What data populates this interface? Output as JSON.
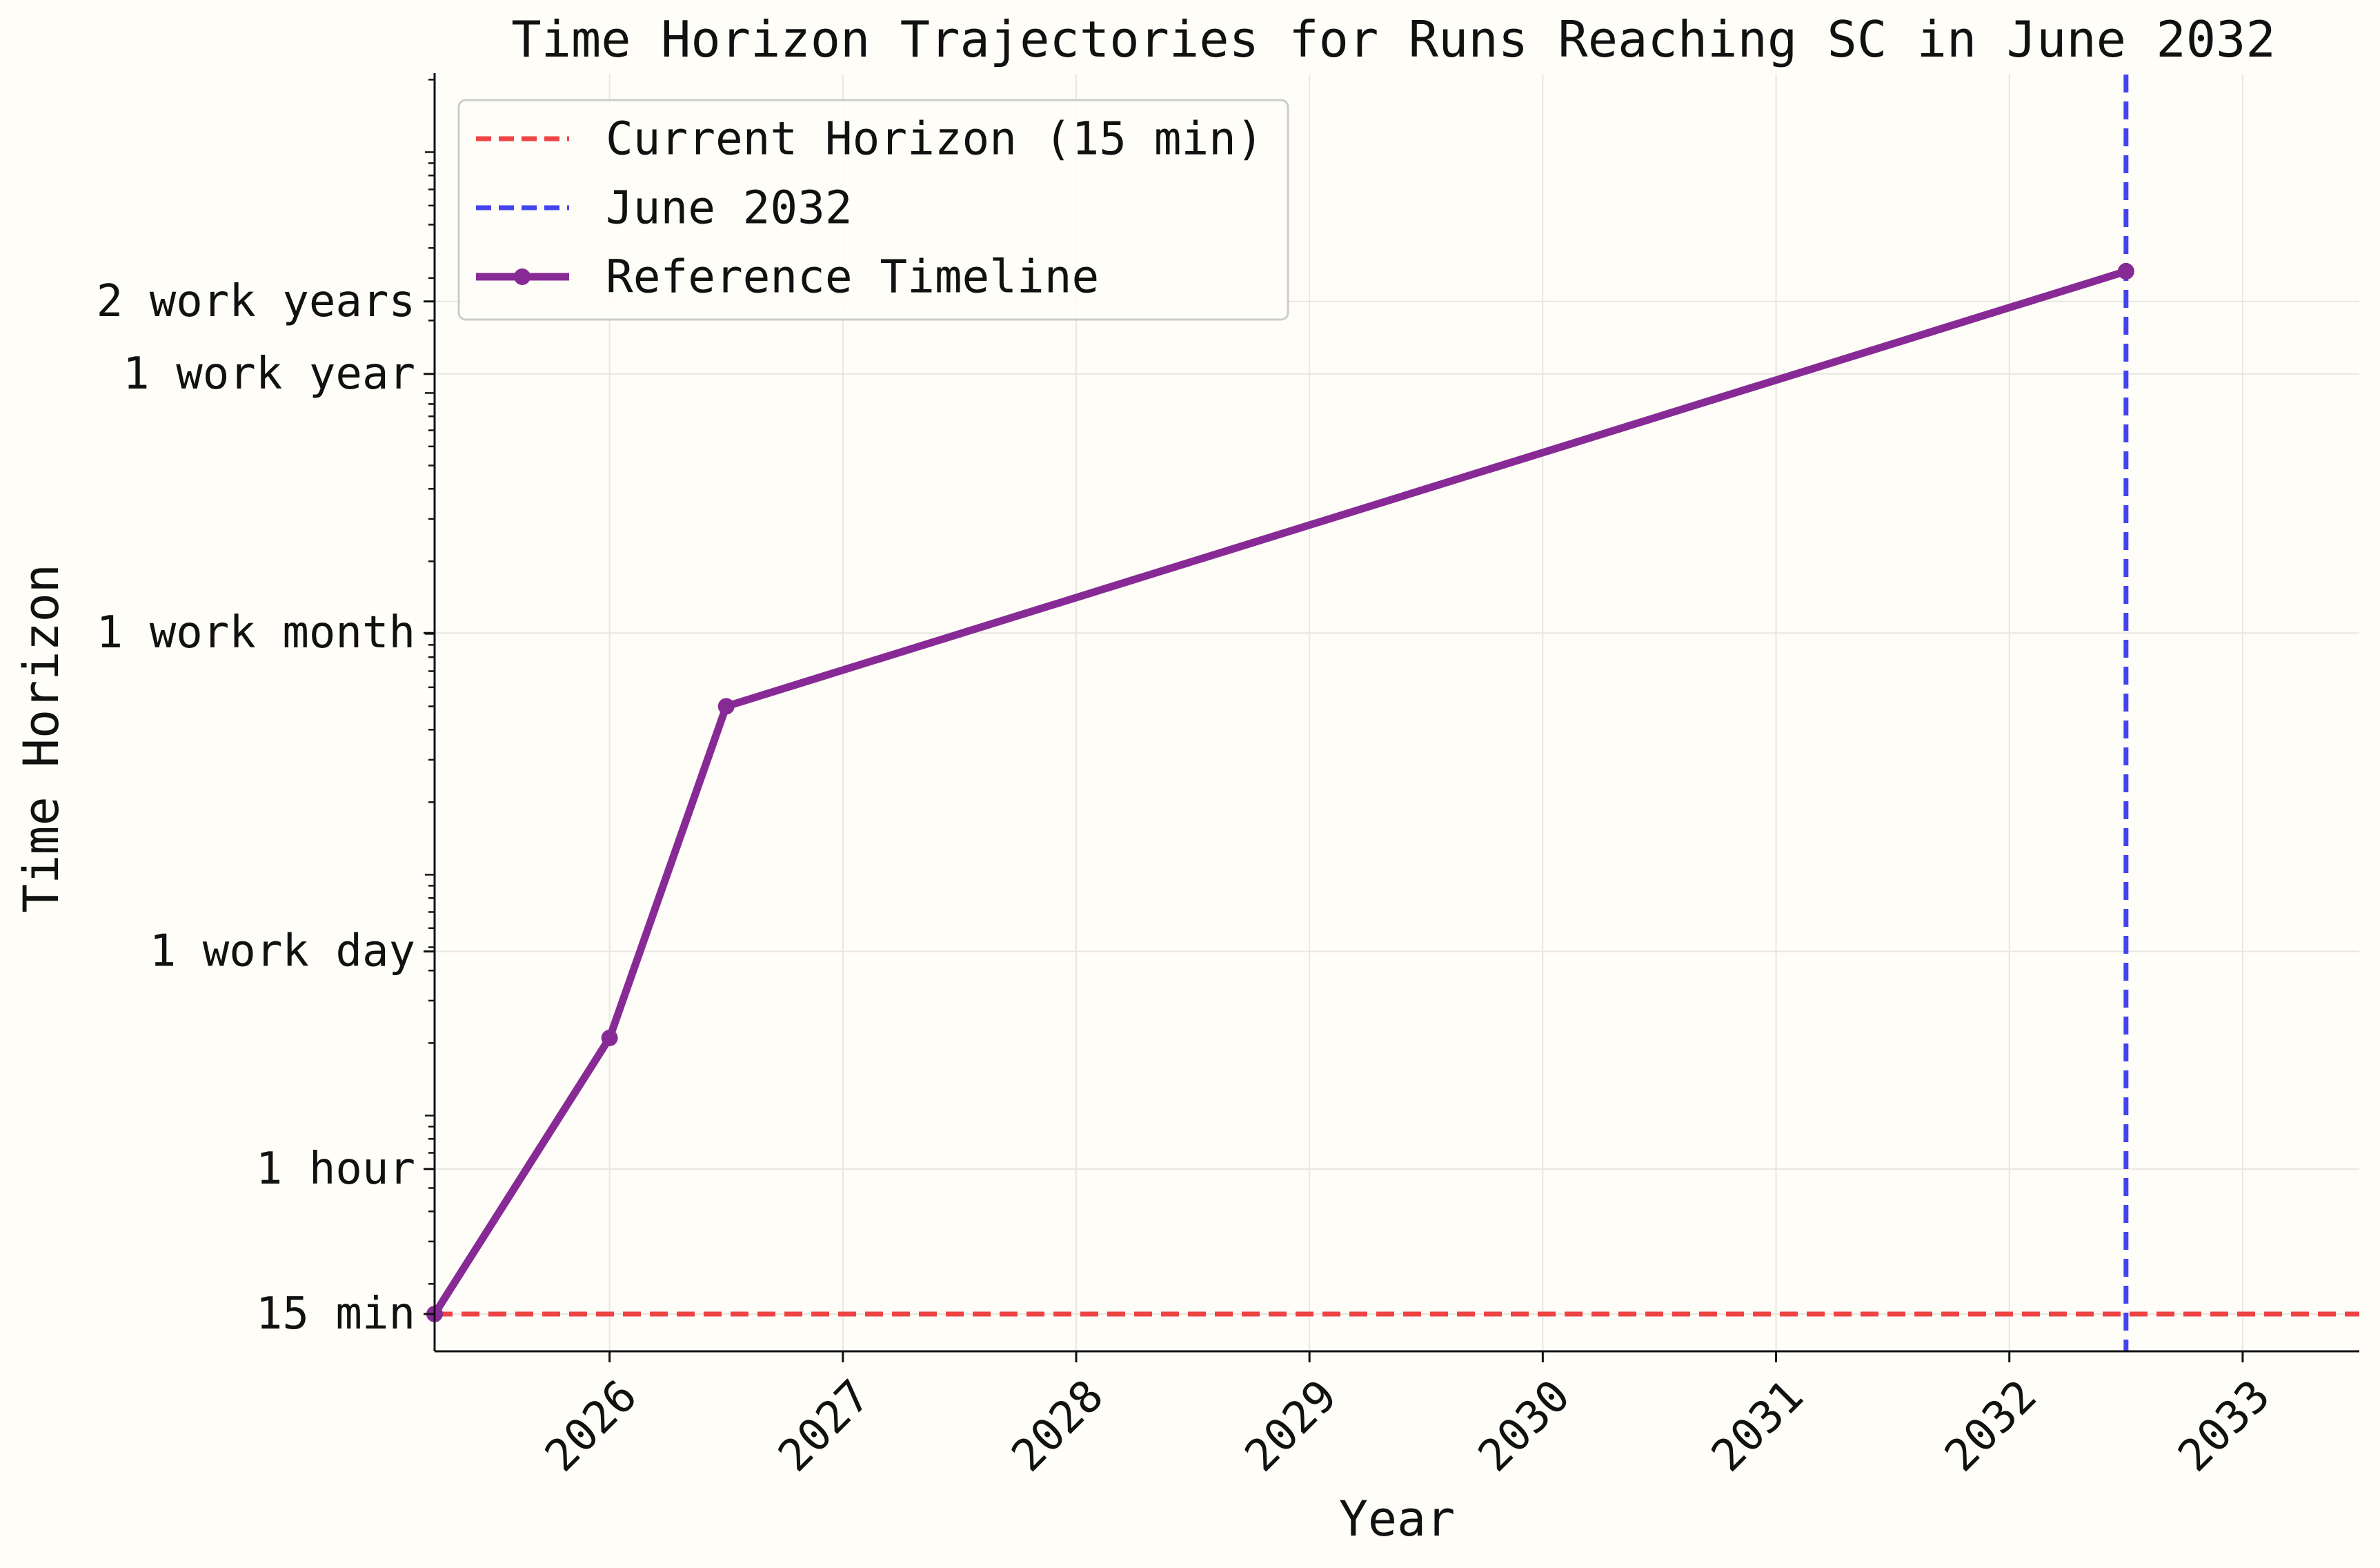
{
  "chart_data": {
    "type": "line",
    "title": "Time Horizon Trajectories for Runs Reaching SC in June 2032",
    "xlabel": "Year",
    "ylabel": "Time Horizon",
    "x_scale": "linear (date)",
    "y_scale": "log",
    "xlim": [
      2025.25,
      2033.5
    ],
    "ylim_minutes": [
      10.5,
      2100000
    ],
    "x_ticks": [
      {
        "value": 2026,
        "label": "2026"
      },
      {
        "value": 2027,
        "label": "2027"
      },
      {
        "value": 2028,
        "label": "2028"
      },
      {
        "value": 2029,
        "label": "2029"
      },
      {
        "value": 2030,
        "label": "2030"
      },
      {
        "value": 2031,
        "label": "2031"
      },
      {
        "value": 2032,
        "label": "2032"
      },
      {
        "value": 2033,
        "label": "2033"
      }
    ],
    "y_ticks": [
      {
        "minutes": 15,
        "label": "15 min"
      },
      {
        "minutes": 60,
        "label": "1 hour"
      },
      {
        "minutes": 480,
        "label": "1 work day"
      },
      {
        "minutes": 10080,
        "label": "1 work month"
      },
      {
        "minutes": 120000,
        "label": "1 work year"
      },
      {
        "minutes": 240000,
        "label": "2 work years"
      }
    ],
    "grid": true,
    "legend_position": "top-left",
    "series": [
      {
        "name": "Reference Timeline",
        "color": "#882a96",
        "marker": "circle",
        "x": [
          2025.25,
          2026.0,
          2026.5,
          2032.5
        ],
        "y_minutes": [
          15,
          210,
          5000,
          320000
        ]
      }
    ],
    "reference_lines": [
      {
        "name": "Current Horizon (15 min)",
        "orientation": "horizontal",
        "value_minutes": 15,
        "color": "#ee4444",
        "style": "dashed"
      },
      {
        "name": "June 2032",
        "orientation": "vertical",
        "value_year": 2032.5,
        "color": "#4444ee",
        "style": "dashed"
      }
    ]
  }
}
